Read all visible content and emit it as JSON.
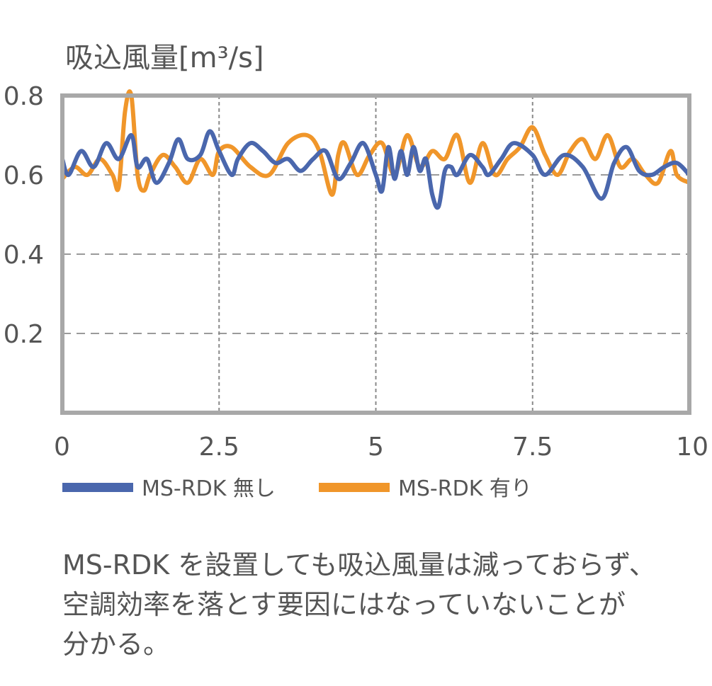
{
  "chart_data": {
    "type": "line",
    "ylabel": "吸込風量[m³/s]",
    "xlim": [
      0,
      10
    ],
    "ylim": [
      0,
      0.8
    ],
    "x_ticks": [
      "0",
      "2.5",
      "5",
      "7.5",
      "10"
    ],
    "y_ticks": [
      "0.8",
      "0.6",
      "0.4",
      "0.2"
    ],
    "grid": true,
    "legend_position": "bottom",
    "series": [
      {
        "name": "MS-RDK 無し",
        "color": "#4a67ad",
        "x": [
          0,
          0.1,
          0.3,
          0.5,
          0.7,
          0.9,
          1.1,
          1.2,
          1.35,
          1.5,
          1.7,
          1.85,
          2.0,
          2.2,
          2.35,
          2.5,
          2.7,
          2.8,
          3.0,
          3.2,
          3.4,
          3.6,
          3.8,
          4.0,
          4.2,
          4.4,
          4.6,
          4.8,
          5.0,
          5.1,
          5.2,
          5.3,
          5.4,
          5.5,
          5.6,
          5.7,
          5.8,
          5.9,
          6.0,
          6.1,
          6.2,
          6.3,
          6.5,
          6.7,
          6.8,
          7.0,
          7.2,
          7.5,
          7.7,
          8.0,
          8.3,
          8.6,
          8.8,
          9.0,
          9.2,
          9.4,
          9.6,
          9.8,
          10.0
        ],
        "y": [
          0.64,
          0.6,
          0.66,
          0.62,
          0.68,
          0.64,
          0.7,
          0.62,
          0.64,
          0.58,
          0.63,
          0.69,
          0.64,
          0.65,
          0.71,
          0.66,
          0.6,
          0.64,
          0.68,
          0.66,
          0.63,
          0.64,
          0.61,
          0.64,
          0.66,
          0.59,
          0.63,
          0.68,
          0.6,
          0.56,
          0.67,
          0.59,
          0.66,
          0.6,
          0.67,
          0.61,
          0.64,
          0.55,
          0.52,
          0.61,
          0.62,
          0.6,
          0.65,
          0.62,
          0.6,
          0.64,
          0.68,
          0.65,
          0.6,
          0.65,
          0.62,
          0.54,
          0.63,
          0.67,
          0.61,
          0.6,
          0.62,
          0.63,
          0.6
        ]
      },
      {
        "name": "MS-RDK 有り",
        "color": "#f0962a",
        "x": [
          0,
          0.2,
          0.4,
          0.6,
          0.8,
          0.9,
          1.0,
          1.1,
          1.2,
          1.3,
          1.4,
          1.6,
          1.8,
          2.0,
          2.2,
          2.4,
          2.5,
          2.7,
          3.0,
          3.3,
          3.6,
          3.9,
          4.1,
          4.3,
          4.4,
          4.5,
          4.7,
          4.9,
          5.1,
          5.3,
          5.5,
          5.7,
          5.9,
          6.1,
          6.3,
          6.5,
          6.7,
          6.9,
          7.1,
          7.3,
          7.5,
          7.7,
          7.9,
          8.1,
          8.3,
          8.5,
          8.7,
          8.9,
          9.1,
          9.3,
          9.5,
          9.7,
          9.8,
          10.0
        ],
        "y": [
          0.59,
          0.62,
          0.6,
          0.64,
          0.6,
          0.57,
          0.76,
          0.8,
          0.6,
          0.56,
          0.6,
          0.65,
          0.62,
          0.58,
          0.64,
          0.6,
          0.66,
          0.67,
          0.62,
          0.6,
          0.68,
          0.7,
          0.66,
          0.55,
          0.65,
          0.68,
          0.6,
          0.65,
          0.68,
          0.6,
          0.7,
          0.62,
          0.66,
          0.64,
          0.7,
          0.58,
          0.68,
          0.6,
          0.64,
          0.67,
          0.72,
          0.65,
          0.6,
          0.66,
          0.69,
          0.64,
          0.7,
          0.62,
          0.64,
          0.6,
          0.58,
          0.66,
          0.6,
          0.58
        ]
      }
    ]
  },
  "caption": {
    "lines": [
      "MS-RDK を設置しても吸込風量は減っておらず、",
      "空調効率を落とす要因にはなっていないことが",
      "分かる。"
    ]
  }
}
